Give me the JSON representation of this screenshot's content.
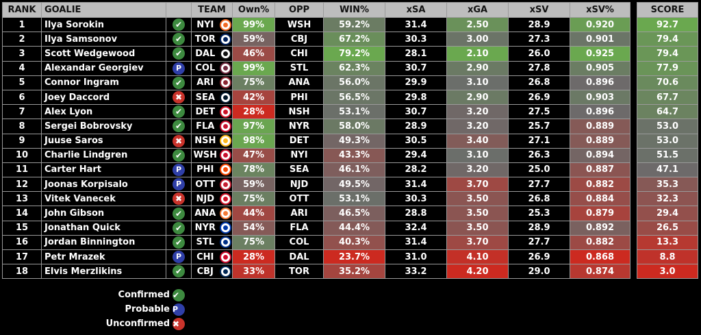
{
  "headers": {
    "rank": "RANK",
    "goalie": "GOALIE",
    "team": "TEAM",
    "own": "Own%",
    "opp": "OPP",
    "win": "WIN%",
    "xsa": "xSA",
    "xga": "xGA",
    "xsv": "xSV",
    "xsvp": "xSV%",
    "score": "SCORE"
  },
  "status_icons": {
    "confirmed": "check-icon",
    "probable": "P",
    "unconfirmed": "x-icon"
  },
  "legend": {
    "confirmed": "Confirmed",
    "probable": "Probable",
    "unconfirmed": "Unconfirmed"
  },
  "scale_colors": {
    "good": "#6aa84f",
    "mid": "#6b6b6b",
    "bad": "#cc2a20"
  },
  "rows": [
    {
      "rank": "1",
      "goalie": "Ilya Sorokin",
      "status": "confirmed",
      "team": "NYI",
      "logo": "#f26924",
      "own": "99%",
      "opp": "WSH",
      "win": "59.2%",
      "xsa": "31.4",
      "xga": "2.50",
      "xsv": "28.9",
      "xsvp": "0.920",
      "score": "92.7"
    },
    {
      "rank": "2",
      "goalie": "Ilya Samsonov",
      "status": "confirmed",
      "team": "TOR",
      "logo": "#00205b",
      "own": "59%",
      "opp": "CBJ",
      "win": "67.2%",
      "xsa": "30.3",
      "xga": "3.00",
      "xsv": "27.3",
      "xsvp": "0.901",
      "score": "79.4"
    },
    {
      "rank": "3",
      "goalie": "Scott Wedgewood",
      "status": "confirmed",
      "team": "DAL",
      "logo": "#111111",
      "own": "46%",
      "opp": "CHI",
      "win": "79.2%",
      "xsa": "28.1",
      "xga": "2.10",
      "xsv": "26.0",
      "xsvp": "0.925",
      "score": "79.4"
    },
    {
      "rank": "4",
      "goalie": "Alexandar Georgiev",
      "status": "probable",
      "team": "COL",
      "logo": "#6f263d",
      "own": "99%",
      "opp": "STL",
      "win": "62.3%",
      "xsa": "30.7",
      "xga": "2.90",
      "xsv": "27.8",
      "xsvp": "0.905",
      "score": "77.9"
    },
    {
      "rank": "5",
      "goalie": "Connor Ingram",
      "status": "confirmed",
      "team": "ARI",
      "logo": "#8c2633",
      "own": "75%",
      "opp": "ANA",
      "win": "56.0%",
      "xsa": "29.9",
      "xga": "3.10",
      "xsv": "26.8",
      "xsvp": "0.896",
      "score": "70.6"
    },
    {
      "rank": "6",
      "goalie": "Joey Daccord",
      "status": "unconfirmed",
      "team": "SEA",
      "logo": "#001628",
      "own": "42%",
      "opp": "PHI",
      "win": "56.5%",
      "xsa": "29.8",
      "xga": "2.90",
      "xsv": "26.9",
      "xsvp": "0.903",
      "score": "67.7"
    },
    {
      "rank": "7",
      "goalie": "Alex Lyon",
      "status": "confirmed",
      "team": "DET",
      "logo": "#ce1126",
      "own": "28%",
      "opp": "NSH",
      "win": "53.1%",
      "xsa": "30.7",
      "xga": "3.20",
      "xsv": "27.5",
      "xsvp": "0.896",
      "score": "64.7"
    },
    {
      "rank": "8",
      "goalie": "Sergei Bobrovsky",
      "status": "confirmed",
      "team": "FLA",
      "logo": "#c8102e",
      "own": "97%",
      "opp": "NYR",
      "win": "58.0%",
      "xsa": "28.9",
      "xga": "3.20",
      "xsv": "25.7",
      "xsvp": "0.889",
      "score": "53.0"
    },
    {
      "rank": "9",
      "goalie": "Juuse Saros",
      "status": "unconfirmed",
      "team": "NSH",
      "logo": "#ffb81c",
      "own": "98%",
      "opp": "DET",
      "win": "49.3%",
      "xsa": "30.5",
      "xga": "3.40",
      "xsv": "27.1",
      "xsvp": "0.889",
      "score": "53.0"
    },
    {
      "rank": "10",
      "goalie": "Charlie Lindgren",
      "status": "confirmed",
      "team": "WSH",
      "logo": "#c8102e",
      "own": "47%",
      "opp": "NYI",
      "win": "43.3%",
      "xsa": "29.4",
      "xga": "3.10",
      "xsv": "26.3",
      "xsvp": "0.894",
      "score": "51.5"
    },
    {
      "rank": "11",
      "goalie": "Carter Hart",
      "status": "probable",
      "team": "PHI",
      "logo": "#f74902",
      "own": "78%",
      "opp": "SEA",
      "win": "46.1%",
      "xsa": "28.2",
      "xga": "3.20",
      "xsv": "25.0",
      "xsvp": "0.887",
      "score": "47.1"
    },
    {
      "rank": "12",
      "goalie": "Joonas Korpisalo",
      "status": "probable",
      "team": "OTT",
      "logo": "#c52032",
      "own": "59%",
      "opp": "NJD",
      "win": "49.5%",
      "xsa": "31.4",
      "xga": "3.70",
      "xsv": "27.7",
      "xsvp": "0.882",
      "score": "35.3"
    },
    {
      "rank": "13",
      "goalie": "Vitek Vanecek",
      "status": "unconfirmed",
      "team": "NJD",
      "logo": "#ce1126",
      "own": "75%",
      "opp": "OTT",
      "win": "53.1%",
      "xsa": "30.3",
      "xga": "3.50",
      "xsv": "26.8",
      "xsvp": "0.884",
      "score": "32.3"
    },
    {
      "rank": "14",
      "goalie": "John Gibson",
      "status": "confirmed",
      "team": "ANA",
      "logo": "#f47a38",
      "own": "44%",
      "opp": "ARI",
      "win": "46.5%",
      "xsa": "28.8",
      "xga": "3.50",
      "xsv": "25.3",
      "xsvp": "0.879",
      "score": "29.4"
    },
    {
      "rank": "15",
      "goalie": "Jonathan Quick",
      "status": "confirmed",
      "team": "NYR",
      "logo": "#0038a8",
      "own": "54%",
      "opp": "FLA",
      "win": "44.4%",
      "xsa": "32.4",
      "xga": "3.50",
      "xsv": "28.9",
      "xsvp": "0.892",
      "score": "26.5"
    },
    {
      "rank": "16",
      "goalie": "Jordan Binnington",
      "status": "confirmed",
      "team": "STL",
      "logo": "#002f87",
      "own": "75%",
      "opp": "COL",
      "win": "40.3%",
      "xsa": "31.4",
      "xga": "3.70",
      "xsv": "27.7",
      "xsvp": "0.882",
      "score": "13.3"
    },
    {
      "rank": "17",
      "goalie": "Petr Mrazek",
      "status": "probable",
      "team": "CHI",
      "logo": "#cf0a2c",
      "own": "28%",
      "opp": "DAL",
      "win": "23.7%",
      "xsa": "31.0",
      "xga": "4.10",
      "xsv": "26.9",
      "xsvp": "0.868",
      "score": "8.8"
    },
    {
      "rank": "18",
      "goalie": "Elvis Merzlikins",
      "status": "confirmed",
      "team": "CBJ",
      "logo": "#002654",
      "own": "33%",
      "opp": "TOR",
      "win": "35.2%",
      "xsa": "33.2",
      "xga": "4.20",
      "xsv": "29.0",
      "xsvp": "0.874",
      "score": "3.0"
    }
  ]
}
